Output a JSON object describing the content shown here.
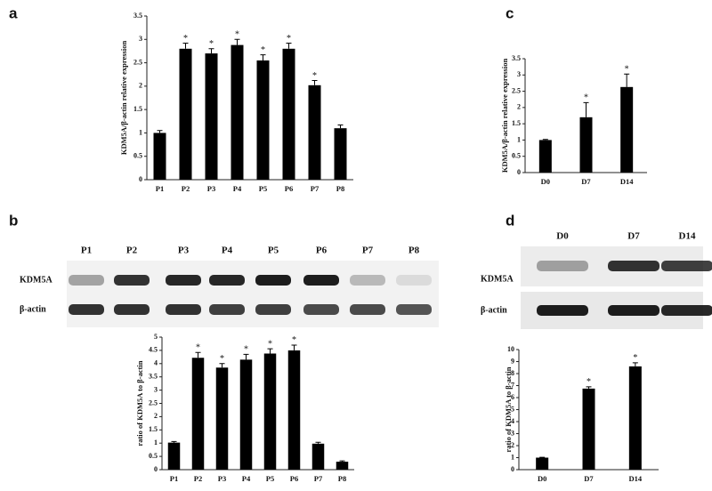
{
  "panels": [
    "a",
    "b",
    "c",
    "d"
  ],
  "blots": [
    {
      "lanes": [
        "P1",
        "P2",
        "P3",
        "P4",
        "P5",
        "P6",
        "P7",
        "P8"
      ],
      "rows": [
        "KDM5A",
        "β-actin"
      ]
    },
    {
      "lanes": [
        "D0",
        "D7",
        "D14"
      ],
      "rows": [
        "KDM5A",
        "β-actin"
      ]
    }
  ],
  "chart_data": [
    {
      "type": "bar",
      "ylabel": "KDM5A/β-actin  relative  expression",
      "color": "#000000",
      "categories": [
        "P1",
        "P2",
        "P3",
        "P4",
        "P5",
        "P6",
        "P7",
        "P8"
      ],
      "values": [
        1.0,
        2.8,
        2.7,
        2.88,
        2.55,
        2.8,
        2.02,
        1.1
      ],
      "errors": [
        0.05,
        0.12,
        0.1,
        0.12,
        0.12,
        0.12,
        0.1,
        0.07
      ],
      "significance": [
        null,
        "*",
        "*",
        "*",
        "*",
        "*",
        "*",
        null
      ],
      "ylim": [
        0,
        3.5
      ],
      "yticks": [
        0,
        0.5,
        1,
        1.5,
        2,
        2.5,
        3,
        3.5
      ]
    },
    {
      "type": "bar",
      "ylabel": "ratio of KDM5A  to  β-actin",
      "color": "#000000",
      "categories": [
        "P1",
        "P2",
        "P3",
        "P4",
        "P5",
        "P6",
        "P7",
        "P8"
      ],
      "values": [
        1.02,
        4.22,
        3.85,
        4.15,
        4.38,
        4.5,
        0.98,
        0.3
      ],
      "errors": [
        0.04,
        0.2,
        0.15,
        0.2,
        0.18,
        0.2,
        0.05,
        0.03
      ],
      "significance": [
        null,
        "*",
        "*",
        "*",
        "*",
        "*",
        null,
        null
      ],
      "ylim": [
        0,
        5
      ],
      "yticks": [
        0,
        0.5,
        1,
        1.5,
        2,
        2.5,
        3,
        3.5,
        4,
        4.5,
        5
      ]
    },
    {
      "type": "bar",
      "ylabel": "KDM5A/β-actin relative expression",
      "color": "#000000",
      "categories": [
        "D0",
        "D7",
        "D14"
      ],
      "values": [
        1.0,
        1.7,
        2.63
      ],
      "errors": [
        0.02,
        0.45,
        0.4
      ],
      "significance": [
        null,
        "*",
        "*"
      ],
      "ylim": [
        0,
        3.5
      ],
      "yticks": [
        0,
        0.5,
        1,
        1.5,
        2,
        2.5,
        3,
        3.5
      ]
    },
    {
      "type": "bar",
      "ylabel": "ratio of KDM5A to β-actin",
      "color": "#000000",
      "categories": [
        "D0",
        "D7",
        "D14"
      ],
      "values": [
        1.0,
        6.75,
        8.6
      ],
      "errors": [
        0.03,
        0.15,
        0.3
      ],
      "significance": [
        null,
        "*",
        "*"
      ],
      "ylim": [
        0,
        10
      ],
      "yticks": [
        0,
        1,
        2,
        3,
        4,
        5,
        6,
        7,
        8,
        9,
        10
      ]
    }
  ]
}
